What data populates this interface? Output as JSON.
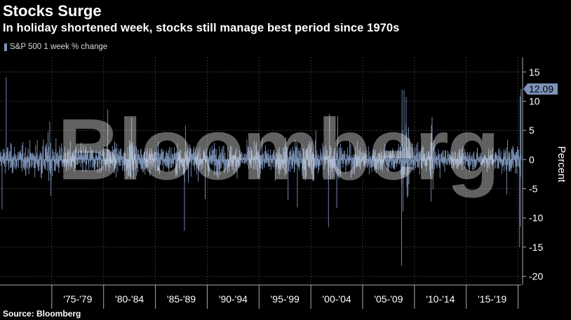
{
  "title": "Stocks Surge",
  "subtitle": "In holiday shortened week, stocks still manage best period since 1970s",
  "source": "Source: Bloomberg",
  "watermark": "Bloomberg",
  "colors": {
    "series": "#7d93b8",
    "background": "#000000",
    "grid": "#555555",
    "text": "#ffffff"
  },
  "chart_data": {
    "type": "bar",
    "title": "Stocks Surge",
    "subtitle": "In holiday shortened week, stocks still manage best period since 1970s",
    "series": [
      {
        "name": "S&P 500 1 week % change",
        "last_value": 12.09,
        "last_value_label": "12.09"
      }
    ],
    "x_start": 1970.0,
    "x_end": 2020.3,
    "notable_points": [
      {
        "x": 1970.2,
        "y": -8.5
      },
      {
        "x": 1970.6,
        "y": 14.1
      },
      {
        "x": 1974.8,
        "y": 6.5
      },
      {
        "x": 1974.9,
        "y": -6.2
      },
      {
        "x": 1980.4,
        "y": 8.6
      },
      {
        "x": 1982.7,
        "y": 7.1
      },
      {
        "x": 1987.8,
        "y": -12.2
      },
      {
        "x": 1987.9,
        "y": 5.8
      },
      {
        "x": 1989.8,
        "y": -6.8
      },
      {
        "x": 1997.8,
        "y": -7.0
      },
      {
        "x": 1998.7,
        "y": -8.2
      },
      {
        "x": 2001.7,
        "y": -11.6
      },
      {
        "x": 2001.8,
        "y": 7.8
      },
      {
        "x": 2002.5,
        "y": -8.3
      },
      {
        "x": 2002.6,
        "y": 7.4
      },
      {
        "x": 2008.75,
        "y": -18.2
      },
      {
        "x": 2008.8,
        "y": 12.0
      },
      {
        "x": 2008.9,
        "y": -8.9
      },
      {
        "x": 2009.0,
        "y": 11.9
      },
      {
        "x": 2009.2,
        "y": 10.7
      },
      {
        "x": 2009.3,
        "y": -6.5
      },
      {
        "x": 2011.6,
        "y": -7.2
      },
      {
        "x": 2011.7,
        "y": 7.3
      },
      {
        "x": 2018.9,
        "y": -6.0
      },
      {
        "x": 2020.15,
        "y": -15.0
      },
      {
        "x": 2020.2,
        "y": 10.8
      },
      {
        "x": 2020.22,
        "y": -11.5
      },
      {
        "x": 2020.28,
        "y": 12.09
      }
    ],
    "x_tick_labels": [
      "'75-'79",
      "'80-'84",
      "'85-'89",
      "'90-'94",
      "'95-'99",
      "'00-'04",
      "'05-'09",
      "'10-'14",
      "'15-'19"
    ],
    "ylabel": "Percent",
    "yticks": [
      -20,
      -15,
      -10,
      -5,
      0,
      5,
      10,
      15
    ],
    "ylim": [
      -21.5,
      17.5
    ],
    "legend_position": "top-left",
    "grid": true
  }
}
